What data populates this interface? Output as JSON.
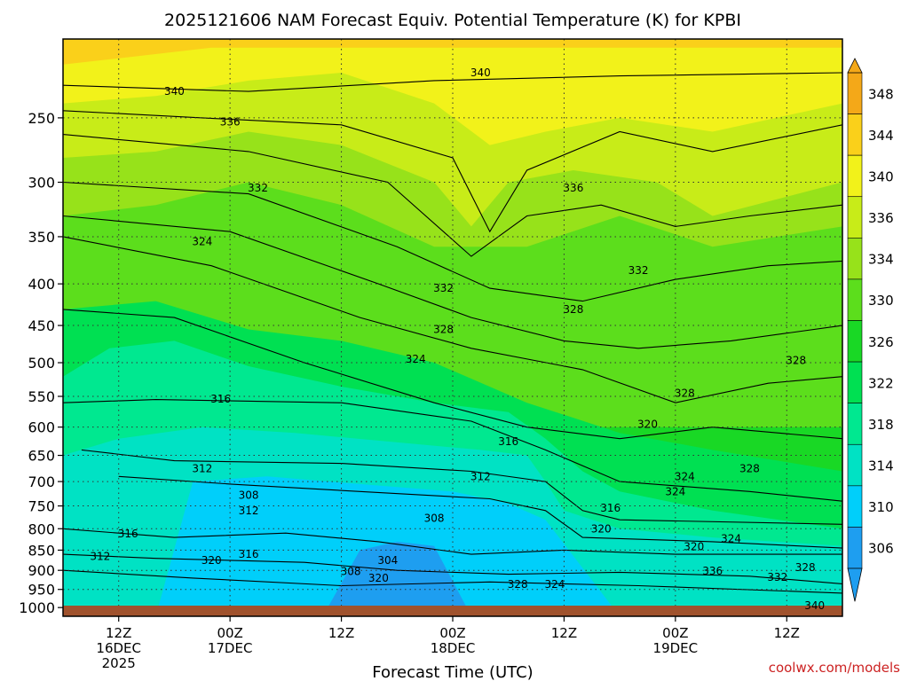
{
  "chart_data": {
    "type": "heatmap",
    "title": "2025121606 NAM Forecast Equiv. Potential Temperature (K) for KPBI",
    "xlabel": "Forecast Time (UTC)",
    "ylabel": "",
    "y_axis": {
      "unit": "hPa",
      "range": [
        1025,
        200
      ],
      "ticks": [
        250,
        300,
        350,
        400,
        450,
        500,
        550,
        600,
        650,
        700,
        750,
        800,
        850,
        900,
        950,
        1000
      ]
    },
    "x_axis": {
      "unit": "hours since 2025-12-16 06Z",
      "range": [
        0,
        84
      ],
      "ticks": [
        {
          "hour": 6,
          "lines": [
            "12Z",
            "16DEC",
            "2025"
          ]
        },
        {
          "hour": 18,
          "lines": [
            "00Z",
            "17DEC"
          ]
        },
        {
          "hour": 30,
          "lines": [
            "12Z"
          ]
        },
        {
          "hour": 42,
          "lines": [
            "00Z",
            "18DEC"
          ]
        },
        {
          "hour": 54,
          "lines": [
            "12Z"
          ]
        },
        {
          "hour": 66,
          "lines": [
            "00Z",
            "19DEC"
          ]
        },
        {
          "hour": 78,
          "lines": [
            "12Z"
          ]
        }
      ]
    },
    "colorbar": {
      "levels": [
        306,
        310,
        314,
        318,
        322,
        326,
        330,
        334,
        336,
        340,
        344,
        348
      ],
      "colors": [
        "#1e9ef0",
        "#00cffa",
        "#00e2c4",
        "#00e890",
        "#00e052",
        "#19d825",
        "#5cde1c",
        "#97e21a",
        "#c8ec18",
        "#f2f21a",
        "#fad01a",
        "#f4a818"
      ]
    },
    "contour_labels": [
      {
        "value": "340",
        "hour": 12,
        "p": 232
      },
      {
        "value": "340",
        "hour": 45,
        "p": 220
      },
      {
        "value": "336",
        "hour": 18,
        "p": 253
      },
      {
        "value": "336",
        "hour": 55,
        "p": 305
      },
      {
        "value": "332",
        "hour": 21,
        "p": 305
      },
      {
        "value": "332",
        "hour": 41,
        "p": 405
      },
      {
        "value": "332",
        "hour": 62,
        "p": 385
      },
      {
        "value": "324",
        "hour": 15,
        "p": 355
      },
      {
        "value": "328",
        "hour": 41,
        "p": 455
      },
      {
        "value": "328",
        "hour": 55,
        "p": 430
      },
      {
        "value": "324",
        "hour": 38,
        "p": 495
      },
      {
        "value": "328",
        "hour": 67,
        "p": 545
      },
      {
        "value": "328",
        "hour": 79,
        "p": 497
      },
      {
        "value": "316",
        "hour": 17,
        "p": 554
      },
      {
        "value": "316",
        "hour": 48,
        "p": 625
      },
      {
        "value": "320",
        "hour": 63,
        "p": 595
      },
      {
        "value": "312",
        "hour": 15,
        "p": 675
      },
      {
        "value": "312",
        "hour": 45,
        "p": 690
      },
      {
        "value": "328",
        "hour": 74,
        "p": 675
      },
      {
        "value": "324",
        "hour": 67,
        "p": 690
      },
      {
        "value": "324",
        "hour": 66,
        "p": 720
      },
      {
        "value": "308",
        "hour": 20,
        "p": 728
      },
      {
        "value": "312",
        "hour": 20,
        "p": 760
      },
      {
        "value": "308",
        "hour": 40,
        "p": 777
      },
      {
        "value": "316",
        "hour": 59,
        "p": 755
      },
      {
        "value": "316",
        "hour": 7,
        "p": 812
      },
      {
        "value": "320",
        "hour": 58,
        "p": 800
      },
      {
        "value": "324",
        "hour": 72,
        "p": 823
      },
      {
        "value": "320",
        "hour": 68,
        "p": 842
      },
      {
        "value": "312",
        "hour": 4,
        "p": 865
      },
      {
        "value": "316",
        "hour": 20,
        "p": 860
      },
      {
        "value": "320",
        "hour": 16,
        "p": 875
      },
      {
        "value": "304",
        "hour": 35,
        "p": 875
      },
      {
        "value": "308",
        "hour": 31,
        "p": 903
      },
      {
        "value": "320",
        "hour": 34,
        "p": 920
      },
      {
        "value": "336",
        "hour": 70,
        "p": 902
      },
      {
        "value": "332",
        "hour": 77,
        "p": 918
      },
      {
        "value": "328",
        "hour": 80,
        "p": 893
      },
      {
        "value": "328",
        "hour": 49,
        "p": 937
      },
      {
        "value": "324",
        "hour": 53,
        "p": 937
      },
      {
        "value": "340",
        "hour": 81,
        "p": 995
      }
    ]
  },
  "credit": "coolwx.com/models"
}
